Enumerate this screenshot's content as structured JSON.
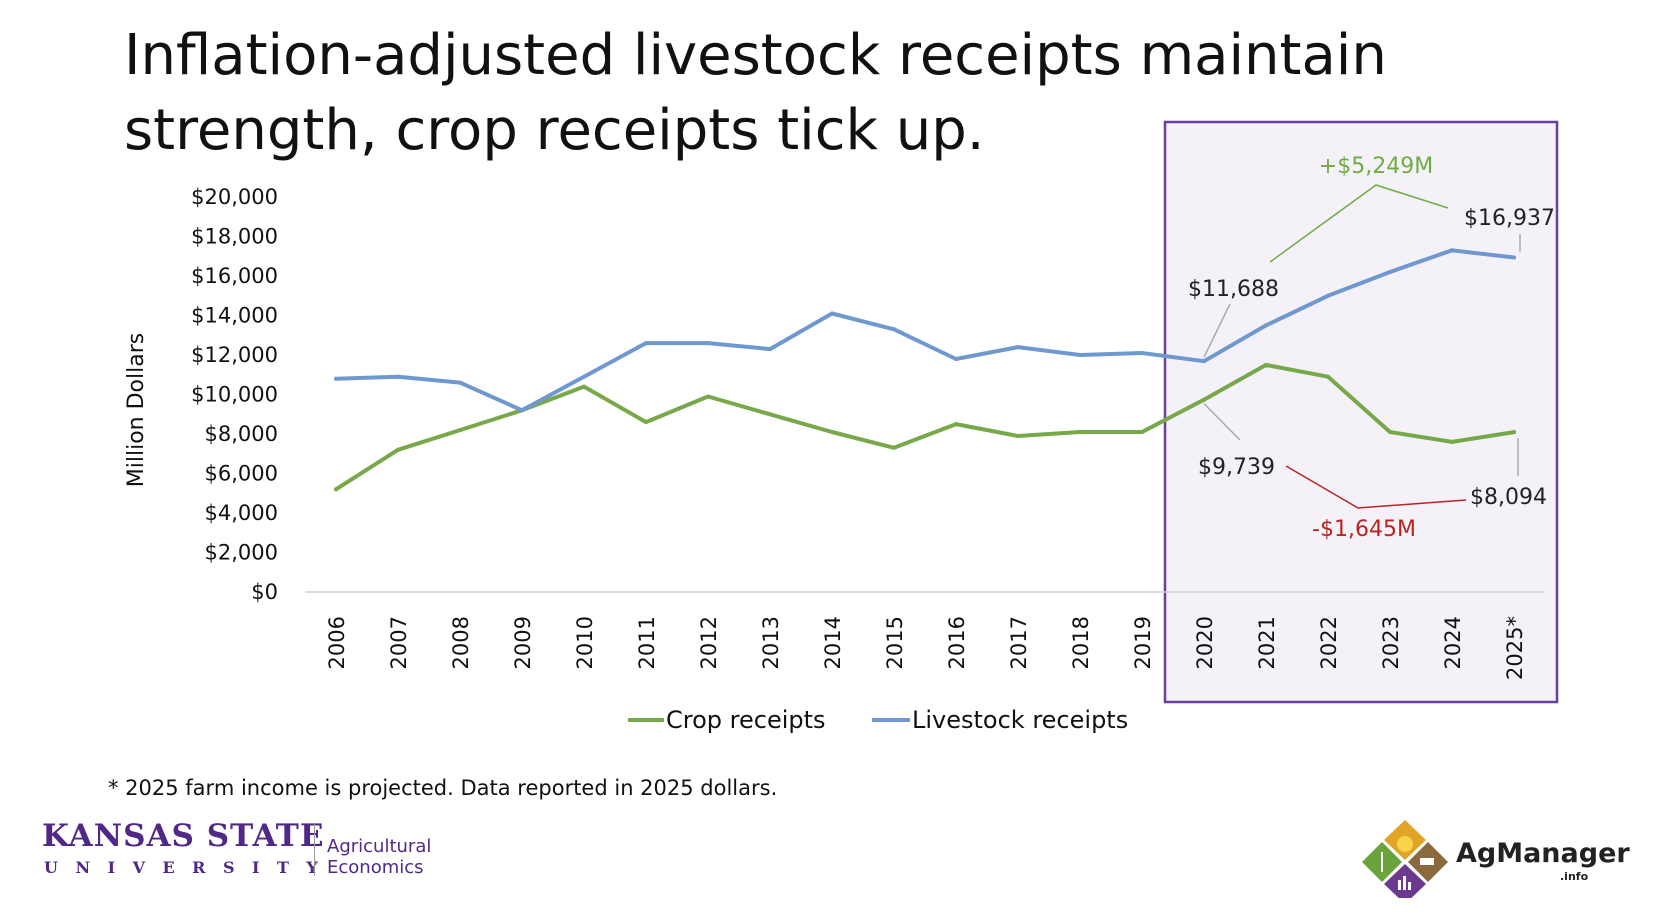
{
  "slide": {
    "title": "Inflation-adjusted livestock receipts maintain strength, crop receipts tick up.",
    "footnote": "* 2025 farm income is projected. Data reported in 2025 dollars."
  },
  "logos": {
    "ksu_name": "KANSAS STATE",
    "ksu_university": "UNIVERSITY",
    "ksu_department": "Agricultural Economics",
    "agmanager_name": "AgManager",
    "agmanager_suffix": ".info"
  },
  "colors": {
    "crop": "#77a84a",
    "livestock": "#6f98cf",
    "highlight_border": "#6a3fa0",
    "highlight_fill": "#f5f1f9",
    "increase_annotation": "#6fac44",
    "decrease_annotation": "#b8251f"
  },
  "chart_data": {
    "type": "line",
    "ylabel": "Million Dollars",
    "xlabel": "",
    "ylim": [
      0,
      20000
    ],
    "ytick_labels": [
      "$0",
      "$2,000",
      "$4,000",
      "$6,000",
      "$8,000",
      "$10,000",
      "$12,000",
      "$14,000",
      "$16,000",
      "$18,000",
      "$20,000"
    ],
    "categories": [
      "2006",
      "2007",
      "2008",
      "2009",
      "2010",
      "2011",
      "2012",
      "2013",
      "2014",
      "2015",
      "2016",
      "2017",
      "2018",
      "2019",
      "2020",
      "2021",
      "2022",
      "2023",
      "2024",
      "2025*"
    ],
    "series": [
      {
        "name": "Crop receipts",
        "values": [
          5200,
          7200,
          8200,
          9200,
          10400,
          8600,
          9900,
          9000,
          8100,
          7300,
          8500,
          7900,
          8100,
          8100,
          9739,
          11500,
          10900,
          8100,
          7600,
          8094
        ]
      },
      {
        "name": "Livestock receipts",
        "values": [
          10800,
          10900,
          10600,
          9200,
          10900,
          12600,
          12600,
          12300,
          14100,
          13300,
          11800,
          12400,
          12000,
          12100,
          11688,
          13500,
          15000,
          16200,
          17300,
          16937
        ]
      }
    ],
    "legend": [
      "Crop receipts",
      "Livestock receipts"
    ],
    "legend_position": "bottom",
    "highlight_range": [
      "2020",
      "2025*"
    ],
    "annotations": {
      "livestock_start": "$11,688",
      "livestock_end": "$16,937",
      "livestock_change": "+$5,249M",
      "crop_start": "$9,739",
      "crop_end": "$8,094",
      "crop_change": "-$1,645M"
    }
  }
}
